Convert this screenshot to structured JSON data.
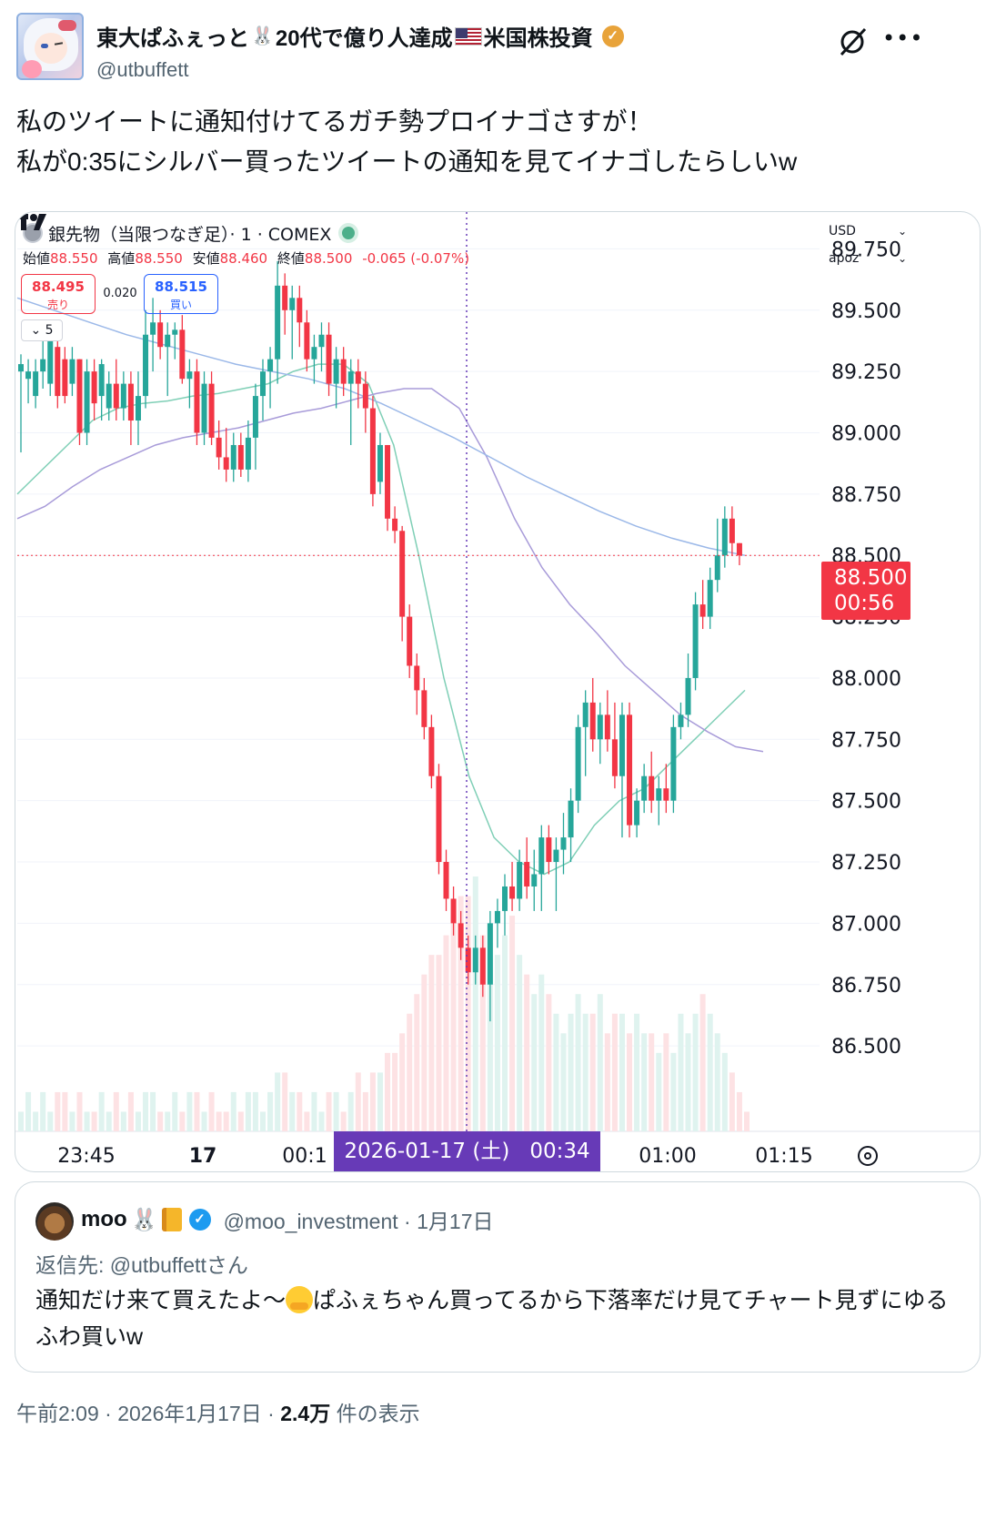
{
  "author": {
    "display_name": "東大ぱふぇっと🐰20代で億り人達成🇺🇸米国株投資",
    "name_part1": "東大ぱふぇっと",
    "name_part2": "20代で億り人達成",
    "name_part3": "米国株投資",
    "handle": "@utbuffett",
    "verified": true
  },
  "tweet": {
    "line1": "私のツイートに通知付けてるガチ勢プロイナゴさすが！",
    "line2": "私が0:35にシルバー買ったツイートの通知を見てイナゴしたらしいw"
  },
  "chart": {
    "symbol_title": "銀先物（当限つなぎ足）· 1 · COMEX",
    "ohlc": {
      "open_label": "始値",
      "open": "88.550",
      "high_label": "高値",
      "high": "88.550",
      "low_label": "安値",
      "low": "88.460",
      "close_label": "終値",
      "close": "88.500",
      "change": "-0.065 (-0.07%)"
    },
    "sell_price": "88.495",
    "sell_label": "売り",
    "spread": "0.020",
    "buy_price": "88.515",
    "buy_label": "買い",
    "indicator_toggle": "5",
    "currency": "USD",
    "scale_mode": "apoz",
    "last_price": "88.500",
    "countdown": "00:56",
    "crosshair_date": "2026-01-17 (土)",
    "crosshair_time": "00:34",
    "colors": {
      "up": "#26a69a",
      "down": "#f23645",
      "ma_fast": "#7fcfb6",
      "ma_mid": "#a89bd9",
      "ma_slow": "#9bb8e8",
      "crosshair_label": "#673ab7"
    }
  },
  "chart_data": {
    "type": "candlestick",
    "title": "銀先物（当限つなぎ足）· 1 · COMEX",
    "y_ticks": [
      "89.750",
      "89.500",
      "89.250",
      "89.000",
      "88.750",
      "88.500",
      "88.250",
      "88.000",
      "87.750",
      "87.500",
      "87.250",
      "87.000",
      "86.750",
      "86.500"
    ],
    "x_ticks": [
      "23:45",
      "17",
      "00:1",
      "01:00",
      "01:15"
    ],
    "ylim": [
      86.3,
      89.9
    ],
    "candles": [
      {
        "o": 89.25,
        "h": 89.32,
        "l": 88.92,
        "c": 89.28
      },
      {
        "o": 89.22,
        "h": 89.3,
        "l": 89.12,
        "c": 89.25
      },
      {
        "o": 89.15,
        "h": 89.3,
        "l": 89.1,
        "c": 89.25
      },
      {
        "o": 89.25,
        "h": 89.38,
        "l": 89.18,
        "c": 89.3
      },
      {
        "o": 89.2,
        "h": 89.42,
        "l": 89.15,
        "c": 89.38
      },
      {
        "o": 89.35,
        "h": 89.4,
        "l": 89.1,
        "c": 89.15
      },
      {
        "o": 89.3,
        "h": 89.35,
        "l": 89.12,
        "c": 89.15
      },
      {
        "o": 89.2,
        "h": 89.35,
        "l": 89.15,
        "c": 89.3
      },
      {
        "o": 89.3,
        "h": 89.3,
        "l": 88.95,
        "c": 89.0
      },
      {
        "o": 89.0,
        "h": 89.3,
        "l": 88.95,
        "c": 89.25
      },
      {
        "o": 89.25,
        "h": 89.3,
        "l": 89.05,
        "c": 89.12
      },
      {
        "o": 89.15,
        "h": 89.3,
        "l": 89.05,
        "c": 89.28
      },
      {
        "o": 89.1,
        "h": 89.25,
        "l": 89.05,
        "c": 89.2
      },
      {
        "o": 89.2,
        "h": 89.3,
        "l": 89.05,
        "c": 89.1
      },
      {
        "o": 89.1,
        "h": 89.25,
        "l": 89.05,
        "c": 89.2
      },
      {
        "o": 89.2,
        "h": 89.25,
        "l": 88.95,
        "c": 89.05
      },
      {
        "o": 89.05,
        "h": 89.25,
        "l": 88.95,
        "c": 89.15
      },
      {
        "o": 89.15,
        "h": 89.5,
        "l": 89.1,
        "c": 89.4
      },
      {
        "o": 89.4,
        "h": 89.55,
        "l": 89.25,
        "c": 89.45
      },
      {
        "o": 89.45,
        "h": 89.5,
        "l": 89.3,
        "c": 89.35
      },
      {
        "o": 89.35,
        "h": 89.45,
        "l": 89.15,
        "c": 89.4
      },
      {
        "o": 89.4,
        "h": 89.45,
        "l": 89.3,
        "c": 89.42
      },
      {
        "o": 89.42,
        "h": 89.48,
        "l": 89.2,
        "c": 89.22
      },
      {
        "o": 89.22,
        "h": 89.3,
        "l": 89.1,
        "c": 89.25
      },
      {
        "o": 89.25,
        "h": 89.3,
        "l": 88.95,
        "c": 89.0
      },
      {
        "o": 89.0,
        "h": 89.25,
        "l": 88.95,
        "c": 89.2
      },
      {
        "o": 89.2,
        "h": 89.25,
        "l": 88.95,
        "c": 88.98
      },
      {
        "o": 88.98,
        "h": 89.05,
        "l": 88.85,
        "c": 88.9
      },
      {
        "o": 88.9,
        "h": 89.02,
        "l": 88.8,
        "c": 88.85
      },
      {
        "o": 88.85,
        "h": 89.0,
        "l": 88.8,
        "c": 88.95
      },
      {
        "o": 88.95,
        "h": 89.0,
        "l": 88.82,
        "c": 88.85
      },
      {
        "o": 88.85,
        "h": 89.05,
        "l": 88.8,
        "c": 88.98
      },
      {
        "o": 88.98,
        "h": 89.2,
        "l": 88.85,
        "c": 89.15
      },
      {
        "o": 89.15,
        "h": 89.3,
        "l": 89.05,
        "c": 89.25
      },
      {
        "o": 89.25,
        "h": 89.35,
        "l": 89.1,
        "c": 89.3
      },
      {
        "o": 89.3,
        "h": 89.7,
        "l": 89.2,
        "c": 89.6
      },
      {
        "o": 89.6,
        "h": 89.65,
        "l": 89.4,
        "c": 89.5
      },
      {
        "o": 89.5,
        "h": 89.6,
        "l": 89.3,
        "c": 89.55
      },
      {
        "o": 89.55,
        "h": 89.6,
        "l": 89.35,
        "c": 89.45
      },
      {
        "o": 89.45,
        "h": 89.5,
        "l": 89.25,
        "c": 89.3
      },
      {
        "o": 89.3,
        "h": 89.4,
        "l": 89.2,
        "c": 89.35
      },
      {
        "o": 89.35,
        "h": 89.45,
        "l": 89.25,
        "c": 89.4
      },
      {
        "o": 89.4,
        "h": 89.45,
        "l": 89.15,
        "c": 89.2
      },
      {
        "o": 89.2,
        "h": 89.35,
        "l": 89.1,
        "c": 89.3
      },
      {
        "o": 89.3,
        "h": 89.35,
        "l": 89.15,
        "c": 89.2
      },
      {
        "o": 89.2,
        "h": 89.3,
        "l": 88.95,
        "c": 89.25
      },
      {
        "o": 89.25,
        "h": 89.3,
        "l": 89.1,
        "c": 89.2
      },
      {
        "o": 89.2,
        "h": 89.25,
        "l": 89.0,
        "c": 89.1
      },
      {
        "o": 89.1,
        "h": 89.15,
        "l": 88.7,
        "c": 88.75
      },
      {
        "o": 88.8,
        "h": 89.0,
        "l": 88.75,
        "c": 88.95
      },
      {
        "o": 88.95,
        "h": 88.95,
        "l": 88.6,
        "c": 88.65
      },
      {
        "o": 88.65,
        "h": 88.7,
        "l": 88.55,
        "c": 88.6
      },
      {
        "o": 88.6,
        "h": 88.62,
        "l": 88.15,
        "c": 88.25
      },
      {
        "o": 88.25,
        "h": 88.3,
        "l": 88.0,
        "c": 88.05
      },
      {
        "o": 88.05,
        "h": 88.1,
        "l": 87.85,
        "c": 87.95
      },
      {
        "o": 87.95,
        "h": 88.0,
        "l": 87.75,
        "c": 87.8
      },
      {
        "o": 87.8,
        "h": 87.85,
        "l": 87.55,
        "c": 87.6
      },
      {
        "o": 87.6,
        "h": 87.65,
        "l": 87.2,
        "c": 87.25
      },
      {
        "o": 87.25,
        "h": 87.3,
        "l": 87.05,
        "c": 87.1
      },
      {
        "o": 87.1,
        "h": 87.15,
        "l": 86.95,
        "c": 87.0
      },
      {
        "o": 87.0,
        "h": 87.05,
        "l": 86.85,
        "c": 86.9
      },
      {
        "o": 86.9,
        "h": 86.95,
        "l": 86.75,
        "c": 86.8
      },
      {
        "o": 86.8,
        "h": 86.95,
        "l": 86.75,
        "c": 86.9
      },
      {
        "o": 86.9,
        "h": 86.95,
        "l": 86.7,
        "c": 86.75
      },
      {
        "o": 86.75,
        "h": 87.05,
        "l": 86.6,
        "c": 87.0
      },
      {
        "o": 87.0,
        "h": 87.1,
        "l": 86.9,
        "c": 87.05
      },
      {
        "o": 87.05,
        "h": 87.2,
        "l": 86.95,
        "c": 87.15
      },
      {
        "o": 87.15,
        "h": 87.25,
        "l": 87.05,
        "c": 87.1
      },
      {
        "o": 87.1,
        "h": 87.3,
        "l": 87.05,
        "c": 87.25
      },
      {
        "o": 87.25,
        "h": 87.35,
        "l": 87.1,
        "c": 87.15
      },
      {
        "o": 87.15,
        "h": 87.3,
        "l": 87.05,
        "c": 87.2
      },
      {
        "o": 87.2,
        "h": 87.4,
        "l": 87.05,
        "c": 87.35
      },
      {
        "o": 87.35,
        "h": 87.4,
        "l": 87.2,
        "c": 87.25
      },
      {
        "o": 87.25,
        "h": 87.35,
        "l": 87.05,
        "c": 87.3
      },
      {
        "o": 87.3,
        "h": 87.45,
        "l": 87.2,
        "c": 87.35
      },
      {
        "o": 87.35,
        "h": 87.55,
        "l": 87.25,
        "c": 87.5
      },
      {
        "o": 87.5,
        "h": 87.85,
        "l": 87.45,
        "c": 87.8
      },
      {
        "o": 87.8,
        "h": 87.95,
        "l": 87.6,
        "c": 87.9
      },
      {
        "o": 87.9,
        "h": 88.0,
        "l": 87.7,
        "c": 87.75
      },
      {
        "o": 87.75,
        "h": 87.9,
        "l": 87.65,
        "c": 87.85
      },
      {
        "o": 87.85,
        "h": 87.95,
        "l": 87.7,
        "c": 87.75
      },
      {
        "o": 87.75,
        "h": 87.9,
        "l": 87.55,
        "c": 87.6
      },
      {
        "o": 87.6,
        "h": 87.9,
        "l": 87.35,
        "c": 87.85
      },
      {
        "o": 87.85,
        "h": 87.9,
        "l": 87.35,
        "c": 87.4
      },
      {
        "o": 87.4,
        "h": 87.55,
        "l": 87.35,
        "c": 87.5
      },
      {
        "o": 87.5,
        "h": 87.65,
        "l": 87.45,
        "c": 87.6
      },
      {
        "o": 87.6,
        "h": 87.7,
        "l": 87.45,
        "c": 87.5
      },
      {
        "o": 87.5,
        "h": 87.6,
        "l": 87.4,
        "c": 87.55
      },
      {
        "o": 87.55,
        "h": 87.65,
        "l": 87.45,
        "c": 87.5
      },
      {
        "o": 87.5,
        "h": 87.85,
        "l": 87.45,
        "c": 87.8
      },
      {
        "o": 87.8,
        "h": 87.9,
        "l": 87.75,
        "c": 87.85
      },
      {
        "o": 87.85,
        "h": 88.1,
        "l": 87.8,
        "c": 88.0
      },
      {
        "o": 88.0,
        "h": 88.35,
        "l": 87.95,
        "c": 88.3
      },
      {
        "o": 88.3,
        "h": 88.4,
        "l": 88.2,
        "c": 88.25
      },
      {
        "o": 88.25,
        "h": 88.45,
        "l": 88.2,
        "c": 88.4
      },
      {
        "o": 88.4,
        "h": 88.65,
        "l": 88.35,
        "c": 88.5
      },
      {
        "o": 88.5,
        "h": 88.7,
        "l": 88.45,
        "c": 88.65
      },
      {
        "o": 88.65,
        "h": 88.7,
        "l": 88.5,
        "c": 88.55
      },
      {
        "o": 88.55,
        "h": 88.55,
        "l": 88.46,
        "c": 88.5
      }
    ],
    "volume": [
      1,
      2,
      1,
      2,
      1,
      2,
      2,
      1,
      2,
      1,
      1,
      2,
      1,
      2,
      1,
      2,
      1,
      2,
      2,
      1,
      1,
      2,
      1,
      2,
      2,
      1,
      2,
      1,
      1,
      2,
      1,
      2,
      2,
      1,
      2,
      3,
      3,
      2,
      2,
      1,
      2,
      1,
      2,
      2,
      1,
      2,
      3,
      2,
      3,
      3,
      4,
      4,
      5,
      6,
      7,
      8,
      9,
      9,
      10,
      11,
      12,
      12,
      13,
      10,
      9,
      9,
      10,
      11,
      9,
      8,
      7,
      8,
      7,
      6,
      5,
      6,
      7,
      6,
      6,
      7,
      5,
      6,
      6,
      5,
      6,
      5,
      5,
      4,
      5,
      4,
      6,
      5,
      6,
      7,
      6,
      5,
      4,
      3,
      2,
      1
    ],
    "moving_averages": [
      {
        "name": "MA-fast",
        "values": [
          88.75,
          88.85,
          88.95,
          89.05,
          89.1,
          89.12,
          89.13,
          89.15,
          89.16,
          89.18,
          89.2,
          89.25,
          89.28,
          89.28,
          89.2,
          88.95,
          88.5,
          88.0,
          87.6,
          87.35,
          87.25,
          87.2,
          87.25,
          87.4,
          87.5,
          87.55,
          87.65,
          87.75,
          87.85,
          87.95
        ]
      },
      {
        "name": "MA-mid",
        "values": [
          88.65,
          88.7,
          88.78,
          88.85,
          88.9,
          88.95,
          88.98,
          89.0,
          89.02,
          89.05,
          89.08,
          89.1,
          89.13,
          89.16,
          89.18,
          89.18,
          89.1,
          88.9,
          88.65,
          88.45,
          88.3,
          88.18,
          88.05,
          87.95,
          87.85,
          87.78,
          87.72,
          87.7
        ]
      },
      {
        "name": "MA-slow",
        "values": [
          89.55,
          89.5,
          89.45,
          89.4,
          89.36,
          89.32,
          89.28,
          89.25,
          89.22,
          89.18,
          89.12,
          89.05,
          88.98,
          88.9,
          88.82,
          88.75,
          88.68,
          88.62,
          88.57,
          88.53,
          88.5
        ]
      }
    ]
  },
  "quote": {
    "name": "moo",
    "handle": "@moo_investment",
    "date": "1月17日",
    "reply_to": "返信先: @utbuffettさん",
    "text_part1": "通知だけ来て買えたよ〜",
    "text_part2": "ぱふぇちゃん買ってるから下落率だけ見てチャート見ずにゆるふわ買いw"
  },
  "footer": {
    "time": "午前2:09",
    "date": "2026年1月17日",
    "views": "2.4万",
    "views_label": "件の表示"
  }
}
